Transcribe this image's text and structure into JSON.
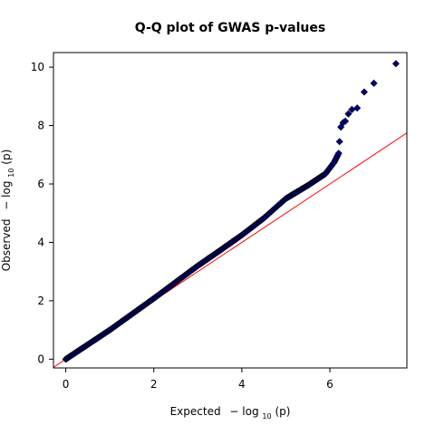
{
  "chart_data": {
    "type": "scatter",
    "title": "Q-Q plot of GWAS p-values",
    "xlabel": {
      "prefix": "Expected",
      "minus": "−",
      "func": "log",
      "sub": "10",
      "arg": "(p)"
    },
    "ylabel": {
      "prefix": "Observed",
      "minus": "−",
      "func": "log",
      "sub": "10",
      "arg": "(p)"
    },
    "xlim": [
      -0.28,
      7.75
    ],
    "ylim": [
      -0.3,
      10.5
    ],
    "xticks": [
      0,
      2,
      4,
      6
    ],
    "yticks": [
      0,
      2,
      4,
      6,
      8,
      10
    ],
    "grid": false,
    "reference_line": {
      "slope": 1,
      "intercept": 0,
      "color": "#ff0000"
    },
    "marker": {
      "shape": "diamond",
      "fill": "#00008b",
      "edge": "#000000"
    },
    "curve": [
      [
        0.0,
        0.0
      ],
      [
        1.0,
        1.0
      ],
      [
        2.0,
        2.08
      ],
      [
        3.0,
        3.2
      ],
      [
        3.5,
        3.72
      ],
      [
        4.0,
        4.25
      ],
      [
        4.5,
        4.83
      ],
      [
        5.0,
        5.5
      ],
      [
        5.5,
        5.95
      ],
      [
        5.9,
        6.35
      ],
      [
        6.1,
        6.75
      ],
      [
        6.2,
        7.05
      ]
    ],
    "tail_points": [
      [
        6.22,
        7.45
      ],
      [
        6.25,
        7.95
      ],
      [
        6.3,
        8.1
      ],
      [
        6.35,
        8.15
      ],
      [
        6.42,
        8.4
      ],
      [
        6.5,
        8.55
      ],
      [
        6.62,
        8.6
      ],
      [
        6.78,
        9.15
      ],
      [
        7.0,
        9.45
      ],
      [
        7.5,
        10.12
      ]
    ],
    "colors": {
      "points": "#00008b",
      "line": "#ff0000",
      "axes": "#000000"
    }
  }
}
